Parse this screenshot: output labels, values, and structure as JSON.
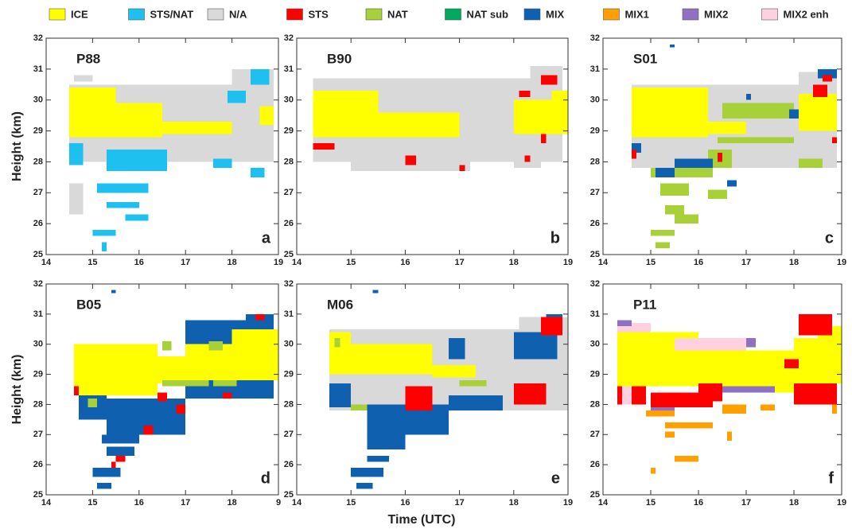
{
  "legend": [
    {
      "name": "ICE",
      "color": "#ffff00"
    },
    {
      "name": "STS/NAT",
      "color": "#1ec0f0"
    },
    {
      "name": "N/A",
      "color": "#d9d9d9"
    },
    {
      "name": "STS",
      "color": "#ff0000"
    },
    {
      "name": "NAT",
      "color": "#a8d038"
    },
    {
      "name": "NAT sub",
      "color": "#00a860"
    },
    {
      "name": "MIX",
      "color": "#1060b0"
    },
    {
      "name": "MIX1",
      "color": "#ffa000"
    },
    {
      "name": "MIX2",
      "color": "#9070c0"
    },
    {
      "name": "MIX2 enh",
      "color": "#ffd0e0"
    }
  ],
  "x_label": "Time (UTC)",
  "chart_data": [
    {
      "type": "classification",
      "title": "P88",
      "letter": "a",
      "y_label": "Height (km)",
      "xlim": [
        14,
        19
      ],
      "xticks": [
        14,
        15,
        16,
        17,
        18,
        19
      ],
      "ylim": [
        25,
        32
      ],
      "yticks": [
        25,
        26,
        27,
        28,
        29,
        30,
        31,
        32
      ],
      "cells": [
        [
          14.6,
          15.0,
          30.6,
          30.8,
          "N/A"
        ],
        [
          14.5,
          18.9,
          28.0,
          30.5,
          "N/A"
        ],
        [
          18.0,
          18.9,
          30.5,
          31.0,
          "N/A"
        ],
        [
          14.5,
          15.5,
          29.6,
          30.4,
          "ICE"
        ],
        [
          14.5,
          16.5,
          28.8,
          29.8,
          "ICE"
        ],
        [
          15.5,
          16.5,
          29.6,
          29.9,
          "ICE"
        ],
        [
          16.5,
          18.0,
          28.9,
          29.3,
          "ICE"
        ],
        [
          18.6,
          18.9,
          29.2,
          29.8,
          "ICE"
        ],
        [
          14.5,
          14.8,
          27.9,
          28.6,
          "STS/NAT"
        ],
        [
          15.3,
          16.6,
          27.7,
          28.4,
          "STS/NAT"
        ],
        [
          17.6,
          18.0,
          27.8,
          28.1,
          "STS/NAT"
        ],
        [
          18.4,
          18.8,
          30.5,
          31.0,
          "STS/NAT"
        ],
        [
          17.9,
          18.3,
          29.9,
          30.3,
          "STS/NAT"
        ],
        [
          15.1,
          16.2,
          27.0,
          27.3,
          "STS/NAT"
        ],
        [
          15.3,
          16.0,
          26.5,
          26.7,
          "STS/NAT"
        ],
        [
          15.0,
          15.5,
          25.6,
          25.8,
          "STS/NAT"
        ],
        [
          15.7,
          16.2,
          26.1,
          26.3,
          "STS/NAT"
        ],
        [
          15.2,
          15.3,
          25.1,
          25.4,
          "STS/NAT"
        ],
        [
          14.5,
          14.8,
          26.3,
          27.3,
          "N/A"
        ],
        [
          18.4,
          18.7,
          27.5,
          27.8,
          "STS/NAT"
        ]
      ]
    },
    {
      "type": "classification",
      "title": "B90",
      "letter": "b",
      "xlim": [
        14,
        19
      ],
      "xticks": [
        14,
        15,
        16,
        17,
        18,
        19
      ],
      "ylim": [
        25,
        32
      ],
      "yticks": [
        25,
        26,
        27,
        28,
        29,
        30,
        31,
        32
      ],
      "cells": [
        [
          14.3,
          18.9,
          28.0,
          30.7,
          "N/A"
        ],
        [
          18.3,
          18.9,
          30.7,
          31.1,
          "N/A"
        ],
        [
          15.0,
          17.2,
          27.7,
          28.0,
          "N/A"
        ],
        [
          18.0,
          18.5,
          27.8,
          28.0,
          "N/A"
        ],
        [
          14.3,
          15.5,
          29.6,
          30.3,
          "ICE"
        ],
        [
          14.3,
          17.0,
          28.8,
          29.6,
          "ICE"
        ],
        [
          18.0,
          19.0,
          28.9,
          30.0,
          "ICE"
        ],
        [
          18.7,
          19.0,
          30.0,
          30.3,
          "ICE"
        ],
        [
          18.5,
          18.8,
          30.5,
          30.8,
          "STS"
        ],
        [
          18.1,
          18.3,
          30.1,
          30.3,
          "STS"
        ],
        [
          14.3,
          14.7,
          28.4,
          28.6,
          "STS"
        ],
        [
          16.0,
          16.2,
          27.9,
          28.2,
          "STS"
        ],
        [
          18.2,
          18.3,
          28.0,
          28.2,
          "STS"
        ],
        [
          18.5,
          18.6,
          28.6,
          28.9,
          "STS"
        ],
        [
          17.0,
          17.1,
          27.7,
          27.9,
          "STS"
        ]
      ]
    },
    {
      "type": "classification",
      "title": "S01",
      "letter": "c",
      "xlim": [
        14,
        19
      ],
      "xticks": [
        14,
        15,
        16,
        17,
        18,
        19
      ],
      "ylim": [
        25,
        32
      ],
      "yticks": [
        25,
        26,
        27,
        28,
        29,
        30,
        31,
        32
      ],
      "cells": [
        [
          14.6,
          18.9,
          27.8,
          30.5,
          "N/A"
        ],
        [
          18.1,
          18.9,
          30.5,
          30.9,
          "N/A"
        ],
        [
          14.6,
          16.2,
          28.8,
          30.4,
          "ICE"
        ],
        [
          16.2,
          17.0,
          28.9,
          29.3,
          "ICE"
        ],
        [
          18.1,
          18.9,
          29.0,
          30.2,
          "ICE"
        ],
        [
          16.5,
          18.0,
          29.4,
          29.9,
          "NAT"
        ],
        [
          16.4,
          17.3,
          28.6,
          28.8,
          "NAT"
        ],
        [
          17.3,
          18.0,
          28.6,
          28.8,
          "NAT"
        ],
        [
          15.0,
          16.3,
          27.5,
          27.8,
          "NAT"
        ],
        [
          16.2,
          16.7,
          27.8,
          28.4,
          "NAT"
        ],
        [
          18.1,
          18.6,
          27.8,
          28.1,
          "NAT"
        ],
        [
          15.2,
          15.8,
          26.9,
          27.3,
          "NAT"
        ],
        [
          15.5,
          16.0,
          26.0,
          26.3,
          "NAT"
        ],
        [
          15.0,
          15.5,
          25.6,
          25.8,
          "NAT"
        ],
        [
          15.1,
          15.4,
          25.2,
          25.4,
          "NAT"
        ],
        [
          16.2,
          16.6,
          26.8,
          27.1,
          "NAT"
        ],
        [
          15.3,
          15.7,
          26.3,
          26.6,
          "NAT"
        ],
        [
          15.5,
          16.3,
          27.8,
          28.1,
          "MIX"
        ],
        [
          15.1,
          15.5,
          27.5,
          27.8,
          "MIX"
        ],
        [
          14.6,
          14.8,
          28.3,
          28.6,
          "MIX"
        ],
        [
          17.9,
          18.1,
          29.4,
          29.7,
          "MIX"
        ],
        [
          18.5,
          18.9,
          30.7,
          31.0,
          "MIX"
        ],
        [
          15.4,
          15.5,
          31.7,
          31.8,
          "MIX"
        ],
        [
          17.0,
          17.1,
          30.0,
          30.2,
          "MIX"
        ],
        [
          16.6,
          16.8,
          27.2,
          27.4,
          "MIX"
        ],
        [
          18.4,
          18.7,
          30.1,
          30.5,
          "STS"
        ],
        [
          18.6,
          18.8,
          30.6,
          30.8,
          "STS"
        ],
        [
          16.4,
          16.5,
          28.0,
          28.3,
          "STS"
        ],
        [
          14.6,
          14.7,
          28.1,
          28.4,
          "STS"
        ],
        [
          18.8,
          18.9,
          28.6,
          28.8,
          "STS"
        ]
      ]
    },
    {
      "type": "classification",
      "title": "B05",
      "letter": "d",
      "y_label": "Height (km)",
      "xlim": [
        14,
        19
      ],
      "xticks": [
        14,
        15,
        16,
        17,
        18,
        {
          "value": 19,
          "label": "9"
        }
      ],
      "ylim": [
        25,
        32
      ],
      "yticks": [
        25,
        26,
        27,
        28,
        29,
        30,
        31,
        32
      ],
      "cells": [
        [
          14.7,
          15.3,
          27.5,
          28.3,
          "MIX"
        ],
        [
          15.3,
          17.0,
          27.0,
          28.2,
          "MIX"
        ],
        [
          17.0,
          18.9,
          28.2,
          30.8,
          "MIX"
        ],
        [
          18.3,
          18.9,
          30.8,
          31.0,
          "MIX"
        ],
        [
          15.2,
          16.0,
          26.7,
          27.0,
          "MIX"
        ],
        [
          15.0,
          15.6,
          25.6,
          25.9,
          "MIX"
        ],
        [
          15.1,
          15.4,
          25.2,
          25.4,
          "MIX"
        ],
        [
          15.3,
          15.9,
          26.3,
          26.6,
          "MIX"
        ],
        [
          15.4,
          15.5,
          31.7,
          31.8,
          "MIX"
        ],
        [
          14.6,
          16.4,
          28.3,
          30.0,
          "ICE"
        ],
        [
          16.4,
          17.0,
          28.7,
          29.6,
          "ICE"
        ],
        [
          17.0,
          18.0,
          28.8,
          30.0,
          "ICE"
        ],
        [
          18.0,
          19.0,
          28.8,
          30.5,
          "ICE"
        ],
        [
          14.9,
          15.1,
          27.9,
          28.2,
          "NAT"
        ],
        [
          16.5,
          17.5,
          28.6,
          28.8,
          "NAT"
        ],
        [
          16.5,
          16.7,
          29.8,
          30.1,
          "NAT"
        ],
        [
          17.5,
          17.8,
          29.8,
          30.1,
          "NAT"
        ],
        [
          17.6,
          18.1,
          28.6,
          28.8,
          "NAT"
        ],
        [
          15.5,
          15.7,
          26.1,
          26.3,
          "STS"
        ],
        [
          15.4,
          15.5,
          25.9,
          26.1,
          "STS"
        ],
        [
          16.1,
          16.3,
          27.0,
          27.3,
          "STS"
        ],
        [
          16.4,
          16.6,
          28.1,
          28.4,
          "STS"
        ],
        [
          16.8,
          17.0,
          27.7,
          28.0,
          "STS"
        ],
        [
          18.5,
          18.7,
          30.8,
          31.0,
          "STS"
        ],
        [
          14.6,
          14.7,
          28.3,
          28.6,
          "STS"
        ],
        [
          17.8,
          18.0,
          28.2,
          28.4,
          "STS"
        ]
      ]
    },
    {
      "type": "classification",
      "title": "M06",
      "letter": "e",
      "xlim": [
        14,
        19
      ],
      "xticks": [
        14,
        15,
        16,
        17,
        18,
        19
      ],
      "ylim": [
        25,
        32
      ],
      "yticks": [
        25,
        26,
        27,
        28,
        29,
        30,
        31,
        32
      ],
      "cells": [
        [
          14.6,
          19.0,
          27.8,
          30.5,
          "N/A"
        ],
        [
          18.1,
          19.0,
          30.5,
          30.9,
          "N/A"
        ],
        [
          14.6,
          16.5,
          29.0,
          30.0,
          "ICE"
        ],
        [
          16.5,
          17.3,
          28.9,
          29.3,
          "ICE"
        ],
        [
          14.6,
          15.0,
          29.8,
          30.4,
          "ICE"
        ],
        [
          14.6,
          15.0,
          27.9,
          28.7,
          "MIX"
        ],
        [
          15.3,
          16.8,
          27.0,
          28.0,
          "MIX"
        ],
        [
          16.8,
          17.8,
          27.8,
          28.3,
          "MIX"
        ],
        [
          15.3,
          16.0,
          26.5,
          27.0,
          "MIX"
        ],
        [
          15.0,
          15.6,
          25.6,
          25.9,
          "MIX"
        ],
        [
          15.1,
          15.4,
          25.2,
          25.4,
          "MIX"
        ],
        [
          15.3,
          15.7,
          26.1,
          26.3,
          "MIX"
        ],
        [
          16.8,
          17.1,
          29.5,
          30.2,
          "MIX"
        ],
        [
          18.0,
          18.8,
          29.5,
          30.4,
          "MIX"
        ],
        [
          18.6,
          18.9,
          30.6,
          31.0,
          "MIX"
        ],
        [
          15.4,
          15.5,
          31.7,
          31.8,
          "MIX"
        ],
        [
          18.0,
          18.6,
          28.0,
          28.7,
          "STS"
        ],
        [
          18.5,
          18.9,
          30.3,
          30.9,
          "STS"
        ],
        [
          16.0,
          16.5,
          27.8,
          28.6,
          "STS"
        ],
        [
          18.3,
          18.5,
          28.1,
          28.3,
          "STS"
        ],
        [
          17.0,
          17.5,
          28.6,
          28.8,
          "NAT"
        ],
        [
          15.0,
          15.3,
          27.8,
          28.0,
          "NAT"
        ],
        [
          14.7,
          14.8,
          29.9,
          30.2,
          "NAT"
        ]
      ]
    },
    {
      "type": "classification",
      "title": "P11",
      "letter": "f",
      "xlim": [
        14,
        19
      ],
      "xticks": [
        14,
        15,
        16,
        17,
        18,
        19
      ],
      "ylim": [
        25,
        32
      ],
      "yticks": [
        25,
        26,
        27,
        28,
        29,
        30,
        31,
        32
      ],
      "cells": [
        [
          14.3,
          16.0,
          28.6,
          30.4,
          "ICE"
        ],
        [
          16.0,
          18.0,
          28.4,
          29.8,
          "ICE"
        ],
        [
          18.0,
          19.0,
          28.7,
          30.2,
          "ICE"
        ],
        [
          18.5,
          19.0,
          30.2,
          30.6,
          "ICE"
        ],
        [
          14.3,
          15.0,
          30.4,
          30.7,
          "MIX2 enh"
        ],
        [
          15.5,
          17.0,
          29.8,
          30.2,
          "MIX2 enh"
        ],
        [
          14.3,
          14.6,
          30.6,
          30.8,
          "MIX2"
        ],
        [
          16.5,
          17.6,
          28.4,
          28.6,
          "MIX2"
        ],
        [
          15.0,
          15.5,
          27.8,
          28.0,
          "MIX2"
        ],
        [
          17.0,
          17.2,
          29.9,
          30.2,
          "MIX2"
        ],
        [
          14.3,
          14.9,
          28.0,
          28.6,
          "STS"
        ],
        [
          15.0,
          16.3,
          27.9,
          28.4,
          "STS"
        ],
        [
          16.0,
          16.5,
          28.1,
          28.7,
          "STS"
        ],
        [
          18.0,
          18.9,
          28.0,
          28.7,
          "STS"
        ],
        [
          18.1,
          18.8,
          30.3,
          31.0,
          "STS"
        ],
        [
          17.8,
          18.1,
          29.2,
          29.5,
          "STS"
        ],
        [
          14.4,
          14.6,
          28.0,
          28.6,
          "MIX2 enh"
        ],
        [
          14.9,
          15.5,
          27.6,
          27.8,
          "MIX1"
        ],
        [
          15.3,
          16.3,
          27.2,
          27.4,
          "MIX1"
        ],
        [
          15.5,
          16.0,
          26.1,
          26.3,
          "MIX1"
        ],
        [
          15.3,
          15.5,
          26.9,
          27.1,
          "MIX1"
        ],
        [
          16.5,
          17.0,
          27.7,
          28.0,
          "MIX1"
        ],
        [
          17.3,
          17.6,
          27.8,
          28.0,
          "MIX1"
        ],
        [
          18.8,
          18.9,
          27.7,
          28.0,
          "MIX1"
        ],
        [
          15.0,
          15.1,
          25.7,
          25.9,
          "MIX1"
        ],
        [
          16.6,
          16.7,
          26.8,
          27.1,
          "MIX1"
        ]
      ]
    }
  ]
}
